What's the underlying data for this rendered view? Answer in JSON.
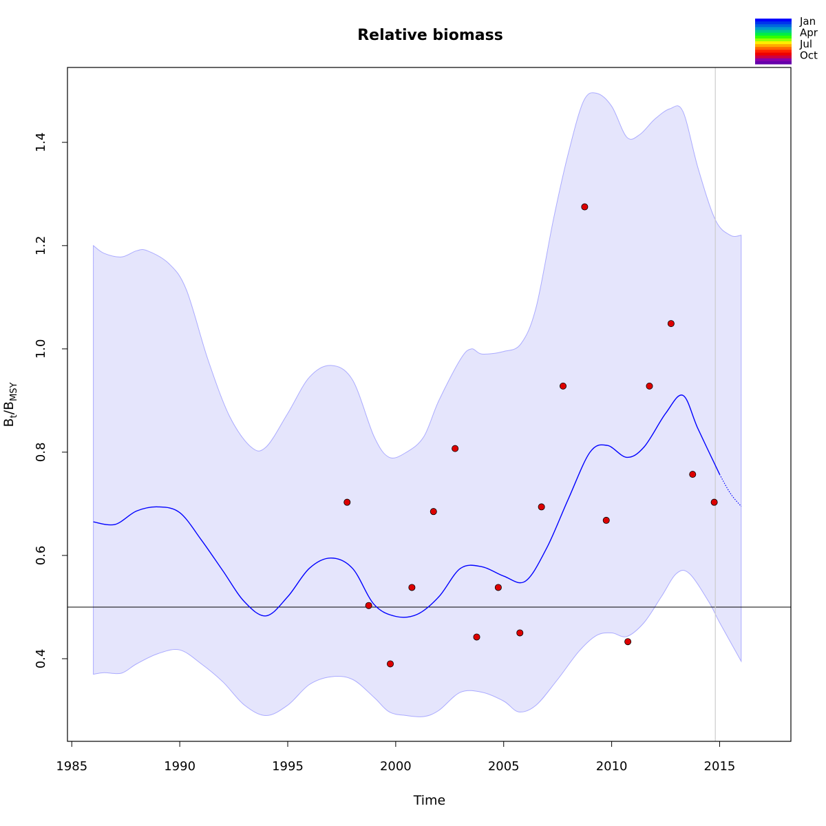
{
  "chart_data": {
    "type": "line",
    "title": "Relative biomass",
    "xlabel": "Time",
    "ylabel": {
      "base": "B",
      "sub1": "t",
      "sep": "/B",
      "sub2": "MSY"
    },
    "xlim": [
      1984.8,
      2018.3
    ],
    "ylim": [
      0.24,
      1.545
    ],
    "x_ticks": [
      1985,
      1990,
      1995,
      2000,
      2005,
      2010,
      2015
    ],
    "y_ticks": [
      0.4,
      0.6,
      0.8,
      1.0,
      1.2,
      1.4
    ],
    "y_tick_labels": [
      "0.4",
      "0.6",
      "0.8",
      "1.0",
      "1.2",
      "1.4"
    ],
    "reference_line_y": 0.5,
    "vertical_line_x": 2014.8,
    "series": [
      {
        "role": "estimate",
        "color": "#0000ff",
        "points": [
          [
            1986,
            0.665
          ],
          [
            1987,
            0.66
          ],
          [
            1988,
            0.686
          ],
          [
            1989,
            0.694
          ],
          [
            1990,
            0.683
          ],
          [
            1991,
            0.63
          ],
          [
            1992,
            0.57
          ],
          [
            1993,
            0.51
          ],
          [
            1994,
            0.483
          ],
          [
            1995,
            0.52
          ],
          [
            1996,
            0.575
          ],
          [
            1997,
            0.595
          ],
          [
            1998,
            0.575
          ],
          [
            1999,
            0.505
          ],
          [
            2000,
            0.482
          ],
          [
            2001,
            0.486
          ],
          [
            2002,
            0.52
          ],
          [
            2003,
            0.575
          ],
          [
            2004,
            0.578
          ],
          [
            2005,
            0.56
          ],
          [
            2006,
            0.55
          ],
          [
            2007,
            0.615
          ],
          [
            2008,
            0.71
          ],
          [
            2009,
            0.8
          ],
          [
            2009.8,
            0.813
          ],
          [
            2010.7,
            0.79
          ],
          [
            2011.5,
            0.81
          ],
          [
            2012.5,
            0.875
          ],
          [
            2013.3,
            0.91
          ],
          [
            2014,
            0.845
          ],
          [
            2015,
            0.757
          ]
        ]
      },
      {
        "role": "forecast",
        "color": "#0000ff",
        "style": "dotted",
        "points": [
          [
            2015,
            0.757
          ],
          [
            2015.5,
            0.72
          ],
          [
            2016,
            0.695
          ]
        ]
      }
    ],
    "confidence_band": {
      "fill": "#e5e5fc",
      "stroke": "#aaaaff",
      "upper": [
        [
          1986,
          1.2
        ],
        [
          1986.5,
          1.185
        ],
        [
          1987.3,
          1.178
        ],
        [
          1988,
          1.19
        ],
        [
          1988.5,
          1.19
        ],
        [
          1989.5,
          1.165
        ],
        [
          1990.3,
          1.115
        ],
        [
          1991.3,
          0.98
        ],
        [
          1992.3,
          0.87
        ],
        [
          1993.3,
          0.81
        ],
        [
          1994,
          0.81
        ],
        [
          1995,
          0.875
        ],
        [
          1996,
          0.945
        ],
        [
          1997,
          0.968
        ],
        [
          1998,
          0.94
        ],
        [
          1999,
          0.83
        ],
        [
          1999.7,
          0.79
        ],
        [
          2000.5,
          0.8
        ],
        [
          2001.3,
          0.83
        ],
        [
          2002,
          0.9
        ],
        [
          2003,
          0.98
        ],
        [
          2003.5,
          1.0
        ],
        [
          2004,
          0.99
        ],
        [
          2005,
          0.995
        ],
        [
          2005.8,
          1.01
        ],
        [
          2006.5,
          1.08
        ],
        [
          2007.3,
          1.25
        ],
        [
          2008,
          1.38
        ],
        [
          2008.7,
          1.48
        ],
        [
          2009.3,
          1.495
        ],
        [
          2010,
          1.47
        ],
        [
          2010.7,
          1.41
        ],
        [
          2011.3,
          1.415
        ],
        [
          2012,
          1.445
        ],
        [
          2012.7,
          1.465
        ],
        [
          2013.3,
          1.46
        ],
        [
          2014,
          1.35
        ],
        [
          2014.8,
          1.25
        ],
        [
          2015.5,
          1.22
        ],
        [
          2016,
          1.22
        ]
      ],
      "lower": [
        [
          1986,
          0.37
        ],
        [
          1986.5,
          0.373
        ],
        [
          1987.3,
          0.372
        ],
        [
          1988,
          0.39
        ],
        [
          1989,
          0.41
        ],
        [
          1990,
          0.417
        ],
        [
          1991,
          0.39
        ],
        [
          1992,
          0.355
        ],
        [
          1993,
          0.31
        ],
        [
          1994,
          0.29
        ],
        [
          1995,
          0.31
        ],
        [
          1996,
          0.35
        ],
        [
          1997,
          0.365
        ],
        [
          1998,
          0.36
        ],
        [
          1999,
          0.325
        ],
        [
          1999.7,
          0.297
        ],
        [
          2000.5,
          0.29
        ],
        [
          2001.3,
          0.288
        ],
        [
          2002,
          0.3
        ],
        [
          2003,
          0.335
        ],
        [
          2004,
          0.335
        ],
        [
          2005,
          0.318
        ],
        [
          2005.7,
          0.297
        ],
        [
          2006.5,
          0.31
        ],
        [
          2007.5,
          0.36
        ],
        [
          2008.5,
          0.415
        ],
        [
          2009.3,
          0.445
        ],
        [
          2010,
          0.45
        ],
        [
          2010.7,
          0.443
        ],
        [
          2011.5,
          0.47
        ],
        [
          2012.3,
          0.52
        ],
        [
          2013,
          0.565
        ],
        [
          2013.6,
          0.565
        ],
        [
          2014.5,
          0.51
        ],
        [
          2015,
          0.47
        ],
        [
          2016,
          0.395
        ]
      ]
    },
    "observations": {
      "color": "#dd0000",
      "points": [
        [
          1997.75,
          0.703
        ],
        [
          1998.75,
          0.503
        ],
        [
          1999.75,
          0.39
        ],
        [
          2000.75,
          0.538
        ],
        [
          2001.75,
          0.685
        ],
        [
          2002.75,
          0.807
        ],
        [
          2003.75,
          0.442
        ],
        [
          2004.75,
          0.538
        ],
        [
          2005.75,
          0.45
        ],
        [
          2006.75,
          0.694
        ],
        [
          2007.75,
          0.928
        ],
        [
          2008.75,
          1.275
        ],
        [
          2009.75,
          0.668
        ],
        [
          2010.75,
          0.433
        ],
        [
          2011.75,
          0.928
        ],
        [
          2012.75,
          1.049
        ],
        [
          2013.75,
          0.757
        ],
        [
          2014.75,
          0.703
        ]
      ]
    },
    "season_legend": {
      "labels": [
        "Jan",
        "Apr",
        "Jul",
        "Oct"
      ],
      "colors": [
        "#0000ff",
        "#0033ee",
        "#0066dd",
        "#0099cc",
        "#00cc88",
        "#00ee44",
        "#33ff00",
        "#99ff00",
        "#ffee00",
        "#ffaa00",
        "#ff6600",
        "#ff2200",
        "#ee0000",
        "#cc0044",
        "#8800aa",
        "#6600aa"
      ]
    }
  }
}
